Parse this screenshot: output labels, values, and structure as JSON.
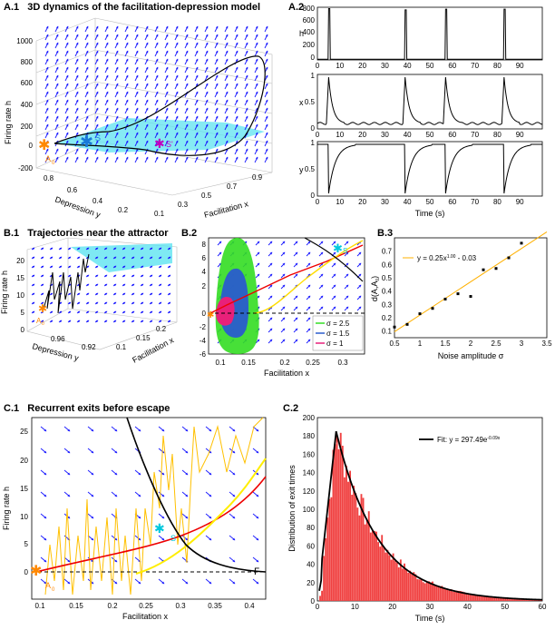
{
  "panels": {
    "A1": {
      "label": "A.1",
      "title": "3D dynamics of the facilitation-depression model",
      "zlabel": "Firing rate h",
      "ylabel": "Depression y",
      "xlabel": "Facilitation x",
      "zticks": [
        "1000",
        "800",
        "600",
        "400",
        "200",
        "0",
        "-200"
      ],
      "yticks": [
        "0.8",
        "0.6",
        "0.4",
        "0.2"
      ],
      "xticks": [
        "0.1",
        "0.3",
        "0.5",
        "0.7",
        "0.9"
      ],
      "pointS": "S",
      "pointA": "A",
      "sub0": "0",
      "pointSprime": "S'"
    },
    "A2": {
      "label": "A.2",
      "xlabel": "Time (s)",
      "h": {
        "ylabel": "h",
        "yticks": [
          "800",
          "600",
          "400",
          "200",
          "0"
        ]
      },
      "x": {
        "ylabel": "x",
        "yticks": [
          "1",
          "0.5",
          "0"
        ]
      },
      "y": {
        "ylabel": "y",
        "yticks": [
          "1",
          "0.5",
          "0"
        ]
      },
      "xticks": [
        "0",
        "10",
        "20",
        "30",
        "40",
        "50",
        "60",
        "70",
        "80",
        "90"
      ]
    },
    "B1": {
      "label": "B.1",
      "title": "Trajectories near the attractor",
      "zlabel": "Firing rate h",
      "ylabel": "Depression y",
      "xlabel": "Facilitation x",
      "zticks": [
        "20",
        "15",
        "10",
        "5",
        "0"
      ],
      "yticks": [
        "0.96",
        "0.92"
      ],
      "xticks": [
        "0.1",
        "0.15",
        "0.2"
      ],
      "pointA": "A",
      "sub0": "0"
    },
    "B2": {
      "label": "B.2",
      "xlabel": "Facilitation x",
      "yticks": [
        "8",
        "6",
        "4",
        "2",
        "0",
        "-2",
        "-4",
        "-6"
      ],
      "xticks": [
        "0.1",
        "0.15",
        "0.2",
        "0.25",
        "0.3"
      ],
      "legend": [
        "σ = 2.5",
        "σ = 1.5",
        "σ = 1"
      ],
      "pointS": "S",
      "pointA": "A"
    },
    "B3": {
      "label": "B.3",
      "xlabel": "Noise amplitude σ",
      "ylabel": "d(A,A",
      "legend": "y = 0.25x",
      "legendExp": "1.00",
      "legendTail": " - 0.03",
      "yticks": [
        "0.7",
        "0.6",
        "0.5",
        "0.4",
        "0.3",
        "0.2",
        "0.1"
      ],
      "xticks": [
        "0.5",
        "1",
        "1.5",
        "2",
        "2.5",
        "3",
        "3.5"
      ]
    },
    "C1": {
      "label": "C.1",
      "title": "Recurrent exits before escape",
      "ylabel": "Firing rate h",
      "xlabel": "Facilitation x",
      "yticks": [
        "25",
        "20",
        "15",
        "10",
        "5",
        "0"
      ],
      "xticks": [
        "0.1",
        "0.15",
        "0.2",
        "0.25",
        "0.3",
        "0.35",
        "0.4"
      ],
      "pointS": "S",
      "pointA": "A",
      "sub0": "0",
      "gamma": "Γ"
    },
    "C2": {
      "label": "C.2",
      "ylabel": "Distribution of exit times",
      "xlabel": "Time (s)",
      "legend": "Fit: y = 297.49e",
      "legendExp": "-0.09x",
      "yticks": [
        "200",
        "180",
        "160",
        "140",
        "120",
        "100",
        "80",
        "60",
        "40",
        "20",
        "0"
      ],
      "xticks": [
        "0",
        "10",
        "20",
        "30",
        "40",
        "50",
        "60"
      ]
    }
  },
  "chart_data": [
    {
      "type": "line",
      "id": "A2_h",
      "ylabel": "h",
      "xlabel": "Time (s)",
      "ylim": [
        0,
        800
      ],
      "xlim": [
        0,
        100
      ],
      "spike_times": [
        5,
        39,
        57,
        83
      ],
      "spike_heights": [
        780,
        760,
        770,
        770
      ],
      "baseline": 10
    },
    {
      "type": "line",
      "id": "A2_x",
      "ylabel": "x",
      "ylim": [
        0,
        1
      ],
      "xlim": [
        0,
        100
      ],
      "spike_times": [
        5,
        39,
        57,
        83
      ],
      "peak": 0.95,
      "baseline": 0.1
    },
    {
      "type": "line",
      "id": "A2_y",
      "ylabel": "y",
      "ylim": [
        0,
        1
      ],
      "xlim": [
        0,
        100
      ],
      "drop_times": [
        5,
        39,
        57,
        83
      ],
      "low": 0.05,
      "baseline": 0.95
    },
    {
      "type": "scatter",
      "id": "B3",
      "title": "",
      "xlabel": "Noise amplitude σ",
      "ylabel": "d(A,A0)",
      "x": [
        0.5,
        0.75,
        1.0,
        1.25,
        1.5,
        1.75,
        2.0,
        2.25,
        2.5,
        2.75,
        3.0
      ],
      "y": [
        0.13,
        0.15,
        0.23,
        0.27,
        0.34,
        0.38,
        0.36,
        0.56,
        0.57,
        0.65,
        0.76
      ],
      "fit": {
        "slope": 0.25,
        "intercept": -0.03
      },
      "xlim": [
        0.5,
        3.5
      ],
      "ylim": [
        0.05,
        0.8
      ]
    },
    {
      "type": "bar",
      "id": "C2",
      "xlabel": "Time (s)",
      "ylabel": "Distribution of exit times",
      "xlim": [
        0,
        60
      ],
      "ylim": [
        0,
        200
      ],
      "fit": {
        "a": 297.49,
        "b": -0.09,
        "peak_time": 5,
        "peak": 185
      }
    }
  ]
}
